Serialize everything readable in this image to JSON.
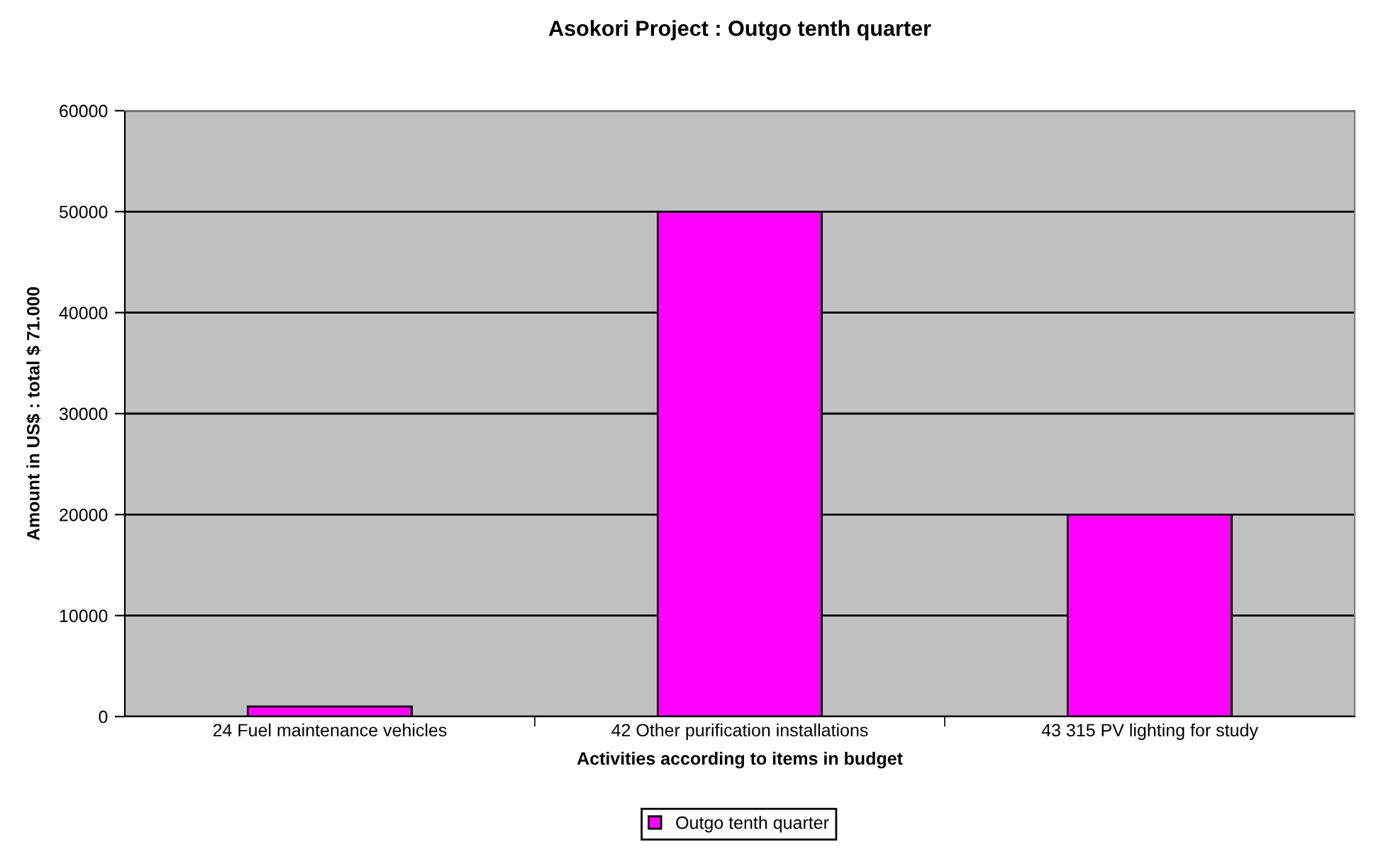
{
  "chart_data": {
    "type": "bar",
    "title": "Asokori Project : Outgo tenth quarter",
    "xlabel": "Activities according to items in budget",
    "ylabel": "Amount in US$ : total $ 71.000",
    "categories": [
      "24 Fuel maintenance vehicles",
      "42 Other purification installations",
      "43 315 PV lighting for study"
    ],
    "series": [
      {
        "name": "Outgo tenth quarter",
        "color": "#ff00ff",
        "values": [
          1000,
          50000,
          20000
        ]
      }
    ],
    "ylim": [
      0,
      60000
    ],
    "yticks": [
      0,
      10000,
      20000,
      30000,
      40000,
      50000,
      60000
    ],
    "grid": "y",
    "legend": "bottom"
  }
}
